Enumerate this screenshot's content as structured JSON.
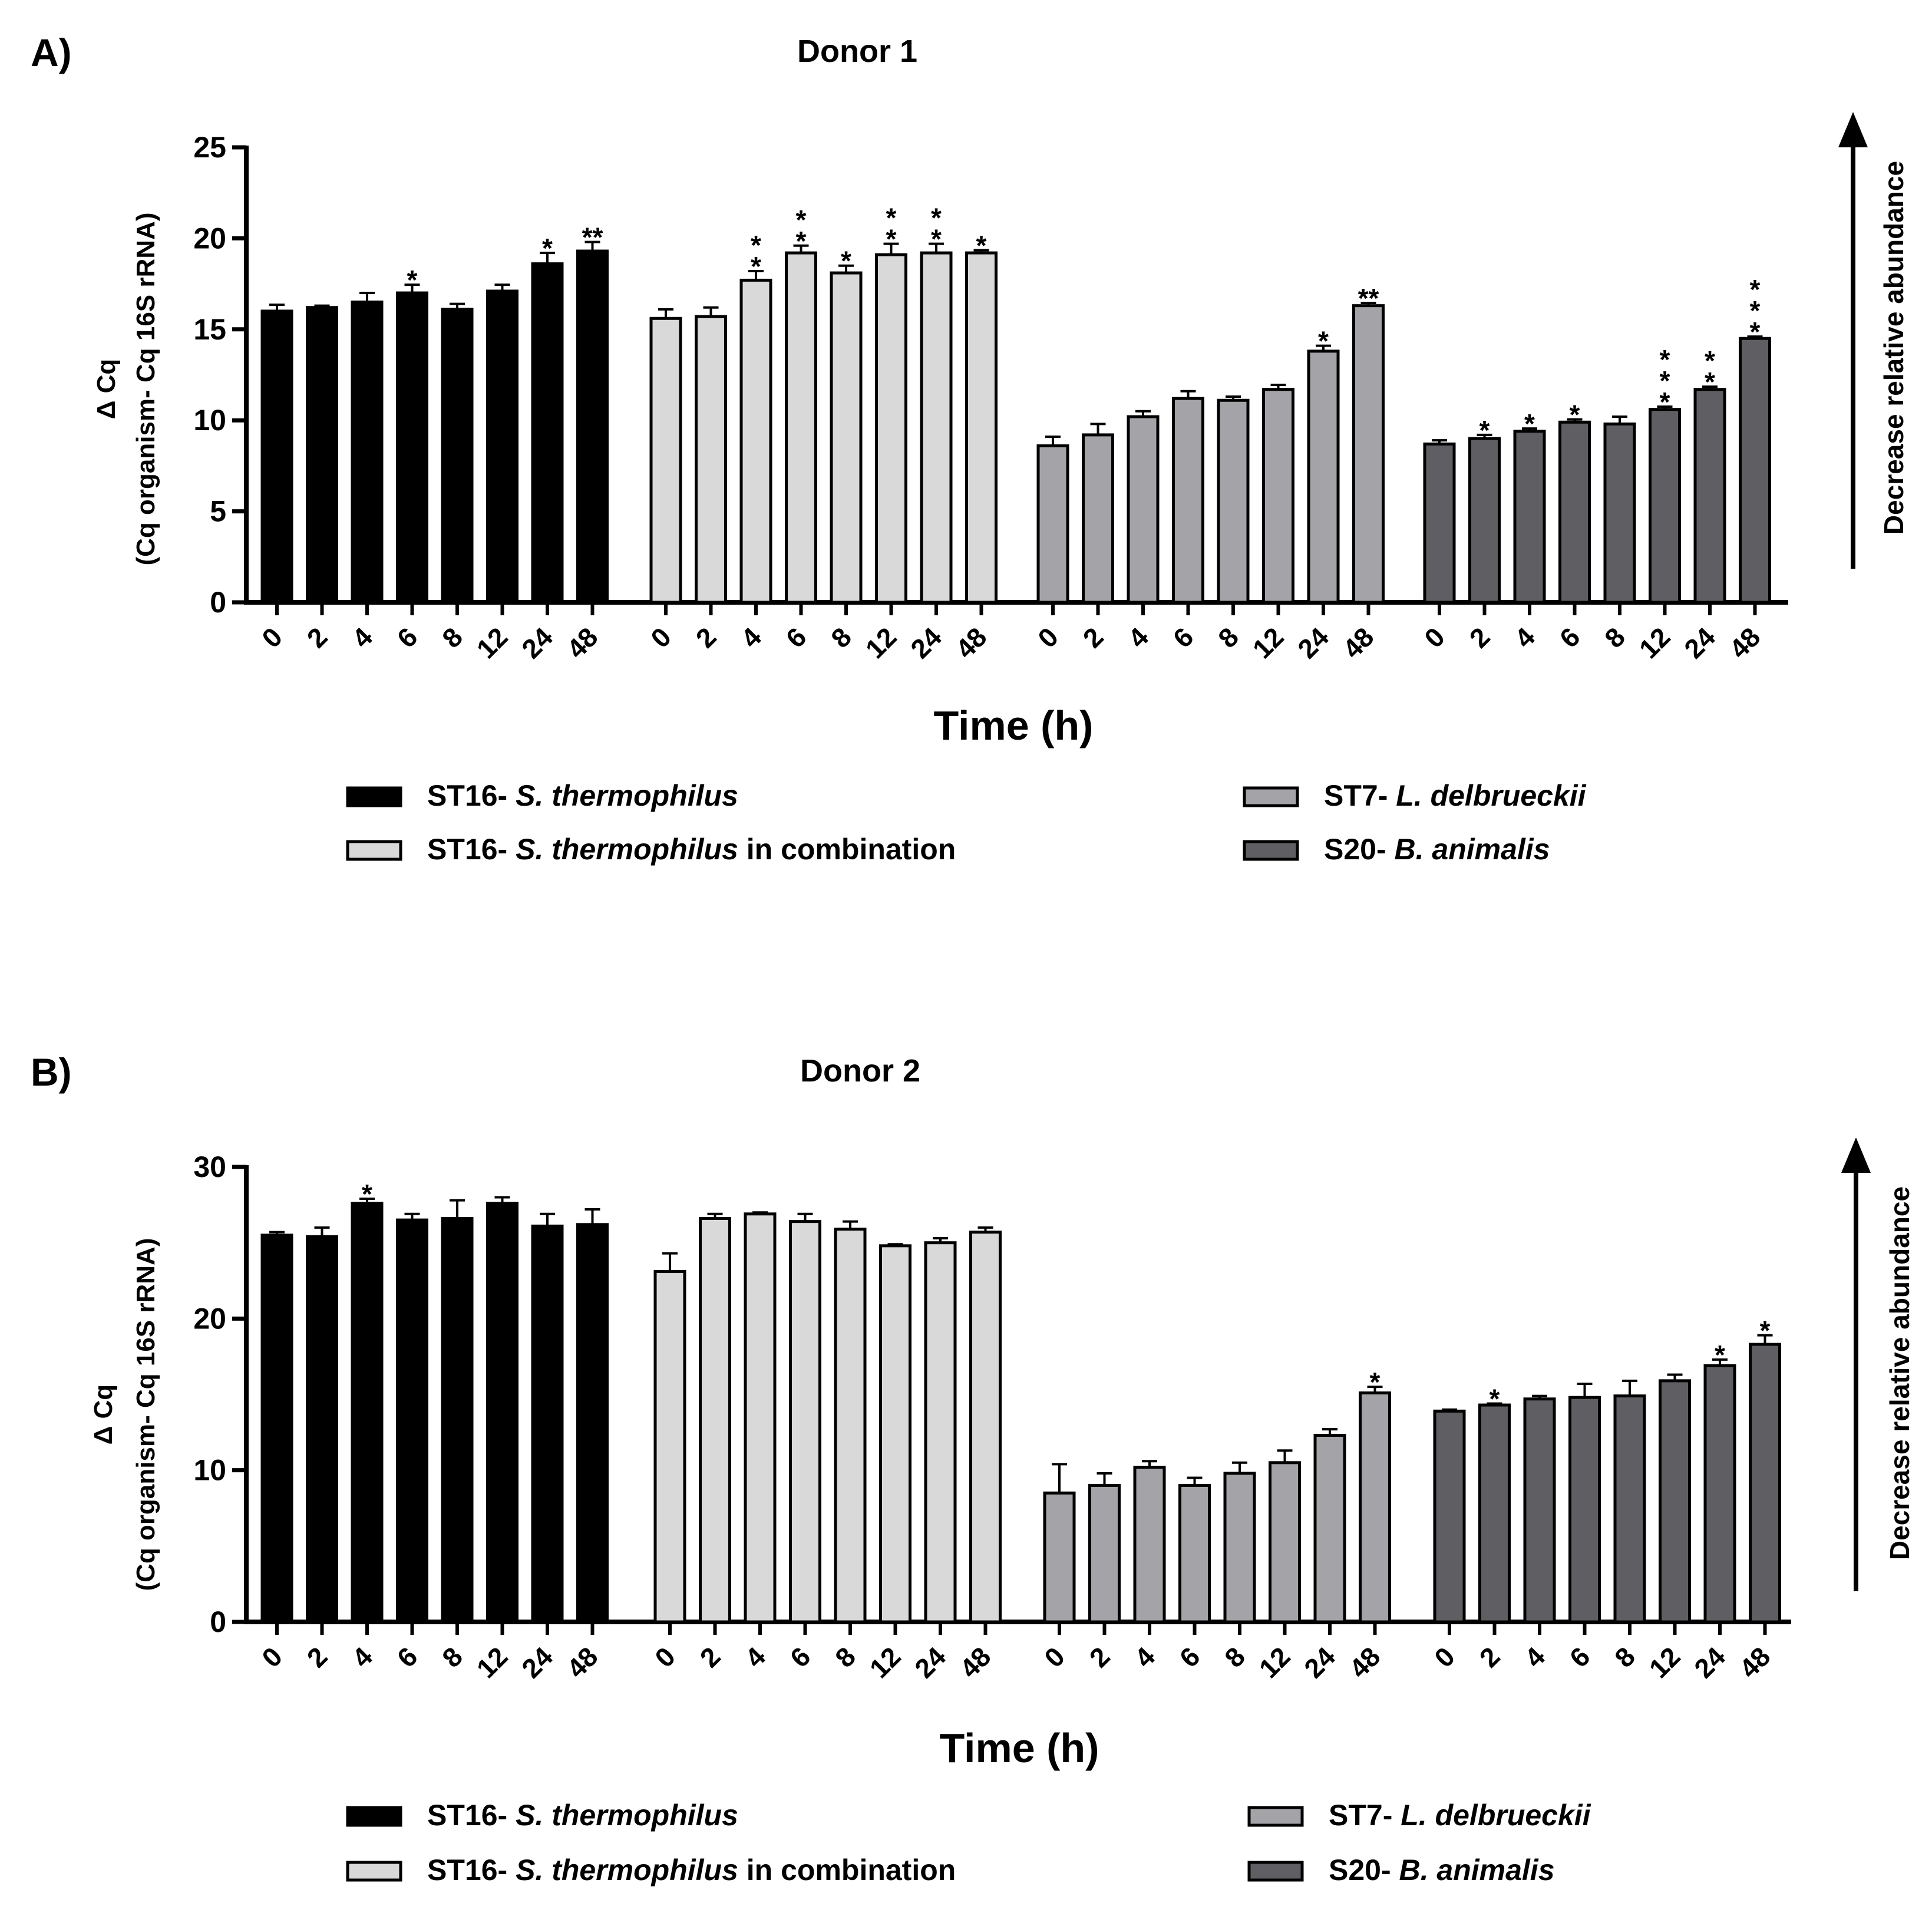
{
  "legend_title": "",
  "arrow_label": "Decrease relative abundance",
  "colors": {
    "ST16": "#000000",
    "ST16combo": "#d9d9d9",
    "ST7": "#a3a3a8",
    "S20": "#5f5f63"
  },
  "legend": [
    {
      "key": "ST16",
      "prefix": "ST16- ",
      "italic": "S. thermophilus",
      "suffix": ""
    },
    {
      "key": "ST16combo",
      "prefix": "ST16- ",
      "italic": "S. thermophilus",
      "suffix": " in combination"
    },
    {
      "key": "ST7",
      "prefix": "ST7- ",
      "italic": "L. delbrueckii",
      "suffix": ""
    },
    {
      "key": "S20",
      "prefix": "S20- ",
      "italic": "B. animalis",
      "suffix": ""
    }
  ],
  "chart_data": [
    {
      "type": "bar",
      "panel": "A)",
      "title": "Donor 1",
      "xlabel": "Time (h)",
      "ylabel_line1": "Δ Cq",
      "ylabel_line2": "(Cq organism- Cq 16S rRNA)",
      "ylim": [
        0,
        25
      ],
      "yticks": [
        0,
        5,
        10,
        15,
        20,
        25
      ],
      "categories": [
        "0",
        "2",
        "4",
        "6",
        "8",
        "12",
        "24",
        "48"
      ],
      "series": [
        {
          "key": "ST16",
          "values": [
            16.0,
            16.2,
            16.5,
            17.0,
            16.1,
            17.1,
            18.6,
            19.3
          ],
          "errors": [
            0.35,
            0.1,
            0.5,
            0.45,
            0.3,
            0.35,
            0.6,
            0.5
          ],
          "stars": [
            "",
            "",
            "",
            "*",
            "",
            "",
            "*",
            "**"
          ]
        },
        {
          "key": "ST16combo",
          "values": [
            15.6,
            15.7,
            17.7,
            19.2,
            18.1,
            19.1,
            19.2,
            19.2
          ],
          "errors": [
            0.5,
            0.5,
            0.5,
            0.4,
            0.4,
            0.6,
            0.5,
            0.15
          ],
          "stars": [
            "",
            "",
            "*\n*",
            "*\n*",
            "*",
            "*\n*",
            "*\n*",
            "*"
          ]
        },
        {
          "key": "ST7",
          "values": [
            8.6,
            9.2,
            10.2,
            11.2,
            11.1,
            11.7,
            13.8,
            16.3
          ],
          "errors": [
            0.5,
            0.6,
            0.3,
            0.4,
            0.2,
            0.25,
            0.3,
            0.15
          ],
          "stars": [
            "",
            "",
            "",
            "",
            "",
            "",
            "*",
            "**"
          ]
        },
        {
          "key": "S20",
          "values": [
            8.7,
            9.0,
            9.4,
            9.9,
            9.8,
            10.6,
            11.7,
            14.5
          ],
          "errors": [
            0.2,
            0.2,
            0.15,
            0.15,
            0.4,
            0.15,
            0.15,
            0.1
          ],
          "stars": [
            "",
            "*",
            "*",
            "*",
            "",
            "*\n*\n*",
            "*\n*",
            "*\n*\n*"
          ]
        }
      ]
    },
    {
      "type": "bar",
      "panel": "B)",
      "title": "Donor 2",
      "xlabel": "Time (h)",
      "ylabel_line1": "Δ Cq",
      "ylabel_line2": "(Cq organism- Cq 16S rRNA)",
      "ylim": [
        0,
        30
      ],
      "yticks": [
        0,
        10,
        20,
        30
      ],
      "categories": [
        "0",
        "2",
        "4",
        "6",
        "8",
        "12",
        "24",
        "48"
      ],
      "series": [
        {
          "key": "ST16",
          "values": [
            25.5,
            25.4,
            27.6,
            26.5,
            26.6,
            27.6,
            26.1,
            26.2
          ],
          "errors": [
            0.2,
            0.6,
            0.3,
            0.4,
            1.2,
            0.4,
            0.8,
            1.0
          ],
          "stars": [
            "",
            "",
            "*",
            "",
            "",
            "",
            "",
            ""
          ]
        },
        {
          "key": "ST16combo",
          "values": [
            23.1,
            26.6,
            26.9,
            26.4,
            25.9,
            24.8,
            25.0,
            25.7
          ],
          "errors": [
            1.2,
            0.3,
            0.1,
            0.5,
            0.5,
            0.1,
            0.3,
            0.3
          ],
          "stars": [
            "",
            "",
            "",
            "",
            "",
            "",
            "",
            ""
          ]
        },
        {
          "key": "ST7",
          "values": [
            8.5,
            9.0,
            10.2,
            9.0,
            9.8,
            10.5,
            12.3,
            15.1
          ],
          "errors": [
            1.9,
            0.8,
            0.4,
            0.5,
            0.7,
            0.8,
            0.4,
            0.4
          ],
          "stars": [
            "",
            "",
            "",
            "",
            "",
            "",
            "",
            "*"
          ]
        },
        {
          "key": "S20",
          "values": [
            13.9,
            14.3,
            14.7,
            14.8,
            14.9,
            15.9,
            16.9,
            18.3
          ],
          "errors": [
            0.1,
            0.1,
            0.2,
            0.9,
            1.0,
            0.4,
            0.4,
            0.6
          ],
          "stars": [
            "",
            "*",
            "",
            "",
            "",
            "",
            "*",
            "*"
          ]
        }
      ]
    }
  ]
}
